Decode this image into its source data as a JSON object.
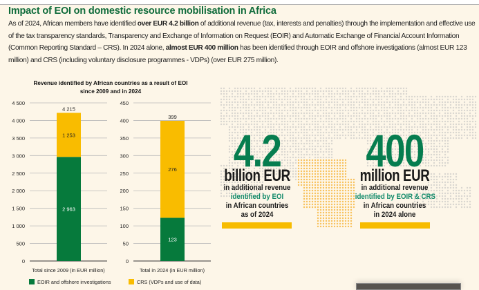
{
  "header": {
    "title": "Impact of EOI on domestic resource mobilisation in Africa",
    "intro": [
      {
        "t": "As of 2024, African members have identified ",
        "b": false
      },
      {
        "t": "over EUR 4.2 billion",
        "b": true
      },
      {
        "t": " of additional revenue (tax, interests and penalties) through the implementation and effective use of the tax transparency standards, Transparency and Exchange of Information on Request (EOIR) and Automatic Exchange of Financial Account Information (Common Reporting Standard – CRS). In 2024 alone, ",
        "b": false
      },
      {
        "t": "almost EUR 400 million",
        "b": true
      },
      {
        "t": " has been identified through EOIR and offshore investigations (almost EUR 123 million) and CRS (including voluntary disclosure programmes - VDPs) (over EUR 275 million).",
        "b": false
      }
    ]
  },
  "colors": {
    "eoir": "#067a3c",
    "crs": "#f9bc00",
    "grid": "#b8b8b8",
    "title": "#0f6b3a",
    "bignum": "#067d4f"
  },
  "chart_data": {
    "type": "bar",
    "stacked": true,
    "title": "Revenue identified by African countries as a result of EOI since 2009 and in 2024",
    "title_lines": [
      "Revenue identified by African countries as a result of EOI",
      "since 2009 and in 2024"
    ],
    "legend": {
      "placement": "bottom",
      "entries": [
        "EOIR and offshore investigations",
        "CRS (VDPs and use of data)"
      ]
    },
    "panels": [
      {
        "xlabel": "Total since 2009 (in EUR million)",
        "ylim": [
          0,
          4500
        ],
        "ticks": [
          0,
          500,
          1000,
          1500,
          2000,
          2500,
          3000,
          3500,
          4000,
          4500
        ],
        "tick_labels": [
          "0",
          "500",
          "1 000",
          "1 500",
          "2 000",
          "2 500",
          "3 000",
          "3 500",
          "4 000",
          "4 500"
        ],
        "series": [
          {
            "name": "EOIR and offshore investigations",
            "value": 2963,
            "label": "2 963"
          },
          {
            "name": "CRS (VDPs and use of data)",
            "value": 1253,
            "label": "1 253"
          }
        ],
        "total": 4215,
        "total_label": "4 215"
      },
      {
        "xlabel": "Total in 2024 (in EUR million)",
        "ylim": [
          0,
          450
        ],
        "ticks": [
          0,
          50,
          100,
          150,
          200,
          250,
          300,
          350,
          400,
          450
        ],
        "tick_labels": [
          "0",
          "50",
          "100",
          "150",
          "200",
          "250",
          "300",
          "350",
          "400",
          "450"
        ],
        "series": [
          {
            "name": "EOIR and offshore investigations",
            "value": 123,
            "label": "123"
          },
          {
            "name": "CRS (VDPs and use of data)",
            "value": 276,
            "label": "276"
          }
        ],
        "total": 399,
        "total_label": "399"
      }
    ]
  },
  "highlights": [
    {
      "number": "4.2",
      "unit": "billion EUR",
      "l1": "in additional revenue",
      "l2": "identified by EOI",
      "l3": "in African countries",
      "l4": "as of 2024"
    },
    {
      "number": "400",
      "unit": "million EUR",
      "l1": "in additional revenue",
      "l2": "identified by EOIR & CRS",
      "l3": "in African countries",
      "l4": "in 2024 alone"
    }
  ]
}
